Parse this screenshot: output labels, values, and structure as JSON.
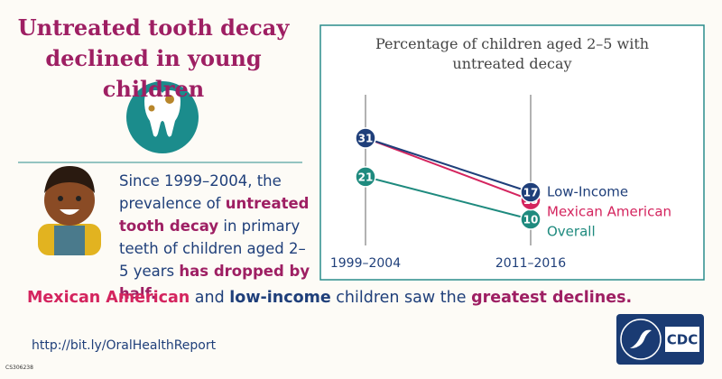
{
  "title": "Untreated tooth decay declined in young children",
  "body": [
    "Since 1999–2004, the prevalence of ",
    "untreated tooth decay",
    " in primary teeth of children aged 2–5 years ",
    "has dropped by half."
  ],
  "summary": [
    "Mexican American",
    " and ",
    "low-income",
    " children saw the ",
    "greatest declines."
  ],
  "url": "http://bit.ly/OralHealthReport",
  "code": "CS306238",
  "logo": "CDC",
  "chart_data": {
    "type": "slope",
    "title": "Percentage of children aged 2–5 with untreated decay",
    "categories": [
      "1999–2004",
      "2011–2016"
    ],
    "series": [
      {
        "name": "Overall",
        "color": "#1e8a7e",
        "values": [
          21,
          10
        ]
      },
      {
        "name": "Mexican American",
        "color": "#d4245e",
        "values": [
          31,
          15
        ]
      },
      {
        "name": "Low-Income",
        "color": "#1f3f7a",
        "values": [
          31,
          17
        ]
      }
    ]
  }
}
